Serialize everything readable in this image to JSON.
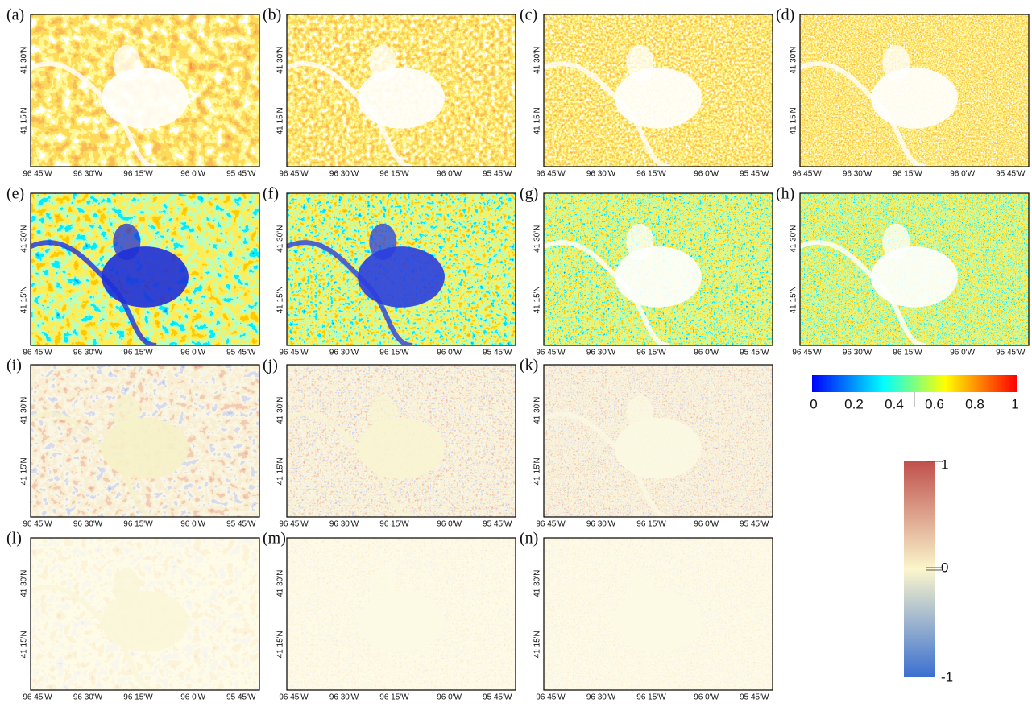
{
  "panels": [
    {
      "label": "(a)"
    },
    {
      "label": "(b)"
    },
    {
      "label": "(c)"
    },
    {
      "label": "(d)"
    },
    {
      "label": "(e)"
    },
    {
      "label": "(f)"
    },
    {
      "label": "(g)"
    },
    {
      "label": "(h)"
    },
    {
      "label": "(i)"
    },
    {
      "label": "(j)"
    },
    {
      "label": "(k)"
    },
    {
      "label": "(l)"
    },
    {
      "label": "(m)"
    },
    {
      "label": "(n)"
    }
  ],
  "lon_ticks": [
    "96 45'W",
    "96 30'W",
    "96 15'W",
    "96 0'W",
    "95 45'W"
  ],
  "lat_ticks": [
    "41 30'N",
    "41 15'N"
  ],
  "colorbar_continuous": {
    "ticks": [
      "0",
      "0.2",
      "0.4",
      "0.6",
      "0.8",
      "1"
    ]
  },
  "colorbar_diverging": {
    "ticks": [
      "1",
      "0",
      "-1"
    ]
  }
}
